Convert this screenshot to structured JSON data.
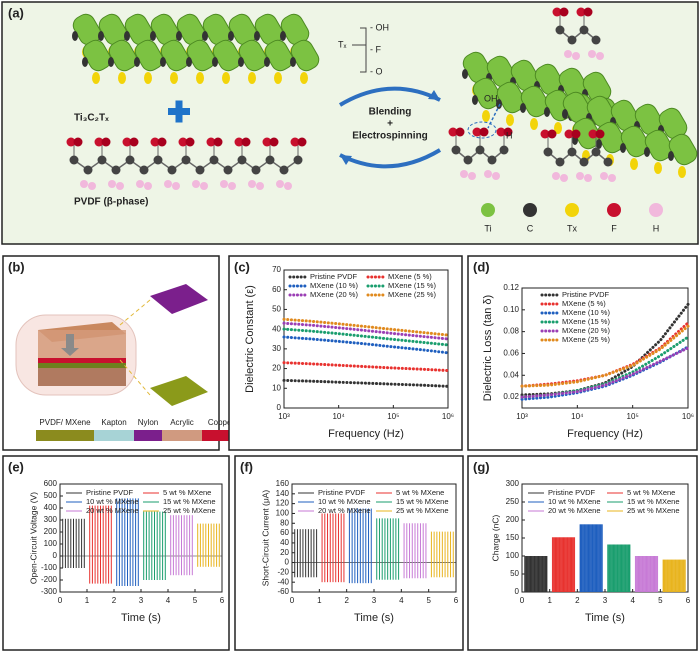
{
  "diagram_a": {
    "label": "(a)",
    "mxene": "Ti₃C₂Tₓ",
    "pvdf": "PVDF (β-phase)",
    "tx": "Tₓ",
    "groups": [
      "- OH",
      "- F",
      "- O"
    ],
    "process": [
      "Blending",
      "+",
      "Electrospinning"
    ],
    "bond_oh": "OH",
    "bond_h": "H",
    "legend": [
      "Ti",
      "C",
      "Tx",
      "F",
      "H"
    ]
  },
  "diagram_b": {
    "label": "(b)",
    "layers": [
      "PVDF/ MXene",
      "Kapton",
      "Nylon",
      "Acrylic",
      "Copper"
    ]
  },
  "chart_data": [
    {
      "type": "line",
      "label": "(c)",
      "xlabel": "Frequency (Hz)",
      "ylabel": "Dielectric Constant (ε)",
      "xscale": "log",
      "legend_columns": 2,
      "x": [
        1000,
        3162,
        10000,
        31623,
        100000,
        316228,
        1000000
      ],
      "xlim": [
        1000,
        1000000
      ],
      "xticks": [
        {
          "value": 1000,
          "label": "10³"
        },
        {
          "value": 10000,
          "label": "10⁴"
        },
        {
          "value": 100000,
          "label": "10⁵"
        },
        {
          "value": 1000000,
          "label": "10⁶"
        }
      ],
      "ylim": [
        0,
        70
      ],
      "yticks": [
        0,
        10,
        20,
        30,
        40,
        50,
        60,
        70
      ],
      "series": [
        {
          "name": "Pristine PVDF",
          "color": "#333333",
          "values": [
            14,
            13.6,
            13.1,
            12.6,
            12.1,
            11.6,
            11
          ]
        },
        {
          "name": "MXene (5 %)",
          "color": "#e8322f",
          "values": [
            23,
            22.4,
            21.7,
            21,
            20.3,
            19.7,
            19
          ]
        },
        {
          "name": "MXene (10 %)",
          "color": "#1f5fbf",
          "values": [
            36,
            35,
            33.8,
            32.5,
            31,
            29.6,
            28
          ]
        },
        {
          "name": "MXene (15 %)",
          "color": "#1a9e6e",
          "values": [
            40,
            39,
            37.7,
            36.3,
            34.8,
            33.4,
            32
          ]
        },
        {
          "name": "MXene (20 %)",
          "color": "#9b3fb5",
          "values": [
            43,
            42,
            40.7,
            39.3,
            37.8,
            36.4,
            35
          ]
        },
        {
          "name": "MXene (25 %)",
          "color": "#e08a1e",
          "values": [
            45,
            44,
            42.7,
            41.3,
            39.8,
            38.4,
            37
          ]
        }
      ]
    },
    {
      "type": "line",
      "label": "(d)",
      "xlabel": "Frequency (Hz)",
      "ylabel": "Dielectric Loss (tan δ)",
      "xscale": "log",
      "legend_columns": 1,
      "x": [
        1000,
        3162,
        10000,
        31623,
        100000,
        316228,
        1000000
      ],
      "xlim": [
        1000,
        1000000
      ],
      "xticks": [
        {
          "value": 1000,
          "label": "10³"
        },
        {
          "value": 10000,
          "label": "10⁴"
        },
        {
          "value": 100000,
          "label": "10⁵"
        },
        {
          "value": 1000000,
          "label": "10⁶"
        }
      ],
      "ylim": [
        0.01,
        0.12
      ],
      "yticks": [
        0.02,
        0.04,
        0.06,
        0.08,
        {
          "value": 0.1,
          "label": "0.10"
        },
        0.12
      ],
      "series": [
        {
          "name": "Pristine PVDF",
          "color": "#333333",
          "values": [
            0.022,
            0.023,
            0.026,
            0.033,
            0.048,
            0.072,
            0.105
          ]
        },
        {
          "name": "MXene (5 %)",
          "color": "#e8322f",
          "values": [
            0.03,
            0.032,
            0.035,
            0.04,
            0.05,
            0.065,
            0.088
          ]
        },
        {
          "name": "MXene (10 %)",
          "color": "#1f5fbf",
          "values": [
            0.018,
            0.02,
            0.024,
            0.03,
            0.04,
            0.052,
            0.066
          ]
        },
        {
          "name": "MXene (15 %)",
          "color": "#1a9e6e",
          "values": [
            0.02,
            0.022,
            0.026,
            0.032,
            0.043,
            0.058,
            0.075
          ]
        },
        {
          "name": "MXene (20 %)",
          "color": "#9b3fb5",
          "values": [
            0.02,
            0.022,
            0.025,
            0.031,
            0.041,
            0.053,
            0.065
          ]
        },
        {
          "name": "MXene (25 %)",
          "color": "#e08a1e",
          "values": [
            0.03,
            0.031,
            0.034,
            0.04,
            0.049,
            0.064,
            0.085
          ]
        }
      ]
    },
    {
      "type": "spike",
      "label": "(e)",
      "xlabel": "Time (s)",
      "ylabel": "Open-Circuit Voltage (V)",
      "legend_columns": 2,
      "xlim": [
        0,
        6
      ],
      "xticks": [
        0,
        1,
        2,
        3,
        4,
        5,
        6
      ],
      "ylim": [
        -300,
        600
      ],
      "yticks": [
        -300,
        -200,
        -100,
        0,
        100,
        200,
        300,
        400,
        500,
        600
      ],
      "series": [
        {
          "name": "Pristine PVDF",
          "color": "#333333",
          "time_range": [
            0.1,
            0.9
          ],
          "values": [
            310,
            -100
          ]
        },
        {
          "name": "5 wt % MXene",
          "color": "#e8322f",
          "time_range": [
            1.1,
            1.9
          ],
          "values": [
            420,
            -230
          ]
        },
        {
          "name": "10 wt % MXene",
          "color": "#1f5fbf",
          "time_range": [
            2.1,
            2.9
          ],
          "values": [
            480,
            -250
          ]
        },
        {
          "name": "15 wt % MXene",
          "color": "#1a9e6e",
          "time_range": [
            3.1,
            3.9
          ],
          "values": [
            370,
            -200
          ]
        },
        {
          "name": "20 wt % MXene",
          "color": "#c77ad6",
          "time_range": [
            4.1,
            4.9
          ],
          "values": [
            340,
            -160
          ]
        },
        {
          "name": "25 wt % MXene",
          "color": "#e8b41e",
          "time_range": [
            5.1,
            5.9
          ],
          "values": [
            270,
            -90
          ]
        }
      ]
    },
    {
      "type": "spike",
      "label": "(f)",
      "xlabel": "Time (s)",
      "ylabel": "Short-Circuit Current (μA)",
      "legend_columns": 2,
      "xlim": [
        0,
        6
      ],
      "xticks": [
        0,
        1,
        2,
        3,
        4,
        5,
        6
      ],
      "ylim": [
        -60,
        160
      ],
      "yticks": [
        -60,
        -40,
        -20,
        0,
        20,
        40,
        60,
        80,
        100,
        120,
        140,
        160
      ],
      "series": [
        {
          "name": "Pristine PVDF",
          "color": "#333333",
          "time_range": [
            0.1,
            0.9
          ],
          "values": [
            68,
            -30
          ]
        },
        {
          "name": "5 wt % MXene",
          "color": "#e8322f",
          "time_range": [
            1.1,
            1.9
          ],
          "values": [
            100,
            -40
          ]
        },
        {
          "name": "10 wt % MXene",
          "color": "#1f5fbf",
          "time_range": [
            2.1,
            2.9
          ],
          "values": [
            110,
            -42
          ]
        },
        {
          "name": "15 wt % MXene",
          "color": "#1a9e6e",
          "time_range": [
            3.1,
            3.9
          ],
          "values": [
            90,
            -35
          ]
        },
        {
          "name": "20 wt % MXene",
          "color": "#c77ad6",
          "time_range": [
            4.1,
            4.9
          ],
          "values": [
            80,
            -32
          ]
        },
        {
          "name": "25 wt % MXene",
          "color": "#e8b41e",
          "time_range": [
            5.1,
            5.9
          ],
          "values": [
            63,
            -30
          ]
        }
      ]
    },
    {
      "type": "spike",
      "label": "(g)",
      "xlabel": "Time (s)",
      "ylabel": "Charge (nC)",
      "legend_columns": 2,
      "xlim": [
        0,
        6
      ],
      "xticks": [
        0,
        1,
        2,
        3,
        4,
        5,
        6
      ],
      "ylim": [
        0,
        300
      ],
      "yticks": [
        0,
        50,
        100,
        150,
        200,
        250,
        300
      ],
      "series": [
        {
          "name": "Pristine PVDF",
          "color": "#333333",
          "time_range": [
            0.1,
            0.9
          ],
          "values": [
            100
          ]
        },
        {
          "name": "5 wt % MXene",
          "color": "#e8322f",
          "time_range": [
            1.1,
            1.9
          ],
          "values": [
            152
          ]
        },
        {
          "name": "10 wt % MXene",
          "color": "#1f5fbf",
          "time_range": [
            2.1,
            2.9
          ],
          "values": [
            188
          ]
        },
        {
          "name": "15 wt % MXene",
          "color": "#1a9e6e",
          "time_range": [
            3.1,
            3.9
          ],
          "values": [
            132
          ]
        },
        {
          "name": "20 wt % MXene",
          "color": "#c77ad6",
          "time_range": [
            4.1,
            4.9
          ],
          "values": [
            100
          ]
        },
        {
          "name": "25 wt % MXene",
          "color": "#e8b41e",
          "time_range": [
            5.1,
            5.9
          ],
          "values": [
            90
          ]
        }
      ]
    }
  ]
}
